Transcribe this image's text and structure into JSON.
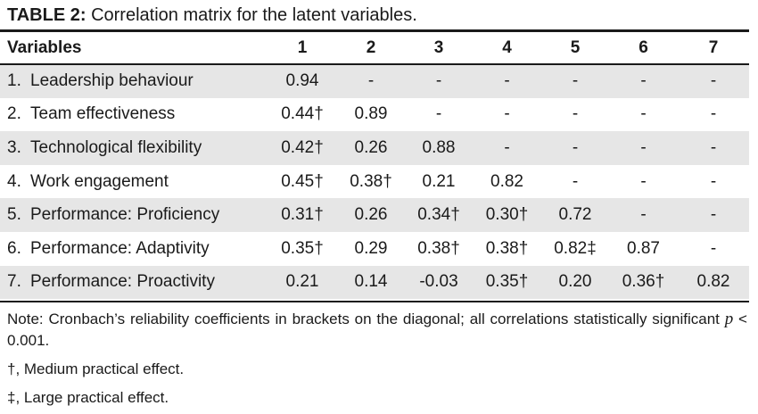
{
  "caption": {
    "label": "TABLE 2:",
    "text": " Correlation matrix for the latent variables."
  },
  "header": {
    "variables_label": "Variables",
    "columns": [
      "1",
      "2",
      "3",
      "4",
      "5",
      "6",
      "7"
    ]
  },
  "rows": [
    {
      "num": "1.",
      "name": "Leadership behaviour",
      "cells": [
        "0.94",
        "-",
        "-",
        "-",
        "-",
        "-",
        "-"
      ]
    },
    {
      "num": "2.",
      "name": "Team effectiveness",
      "cells": [
        "0.44†",
        "0.89",
        "-",
        "-",
        "-",
        "-",
        "-"
      ]
    },
    {
      "num": "3.",
      "name": "Technological flexibility",
      "cells": [
        "0.42†",
        "0.26",
        "0.88",
        "-",
        "-",
        "-",
        "-"
      ]
    },
    {
      "num": "4.",
      "name": "Work engagement",
      "cells": [
        "0.45†",
        "0.38†",
        "0.21",
        "0.82",
        "-",
        "-",
        "-"
      ]
    },
    {
      "num": "5.",
      "name": "Performance: Proficiency",
      "cells": [
        "0.31†",
        "0.26",
        "0.34†",
        "0.30†",
        "0.72",
        "-",
        "-"
      ]
    },
    {
      "num": "6.",
      "name": "Performance: Adaptivity",
      "cells": [
        "0.35†",
        "0.29",
        "0.38†",
        "0.38†",
        "0.82‡",
        "0.87",
        "-"
      ]
    },
    {
      "num": "7.",
      "name": "Performance: Proactivity",
      "cells": [
        "0.21",
        "0.14",
        "-0.03",
        "0.35†",
        "0.20",
        "0.36†",
        "0.82"
      ]
    }
  ],
  "notes": {
    "main_prefix": "Note: Cronbach’s reliability coefficients in brackets on the diagonal; all correlations statistically significant ",
    "p_symbol": "p",
    "main_suffix": " < 0.001.",
    "medium": "†, Medium practical effect.",
    "large": "‡, Large practical effect."
  }
}
